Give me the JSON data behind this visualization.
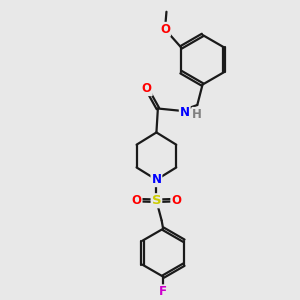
{
  "bg_color": "#e8e8e8",
  "bond_color": "#1a1a1a",
  "line_width": 1.6,
  "atom_colors": {
    "O": "#ff0000",
    "N": "#0000ff",
    "S": "#cccc00",
    "F": "#cc00cc",
    "H": "#808080",
    "C": "#1a1a1a"
  },
  "font_size": 8.5,
  "doffset": 0.045
}
